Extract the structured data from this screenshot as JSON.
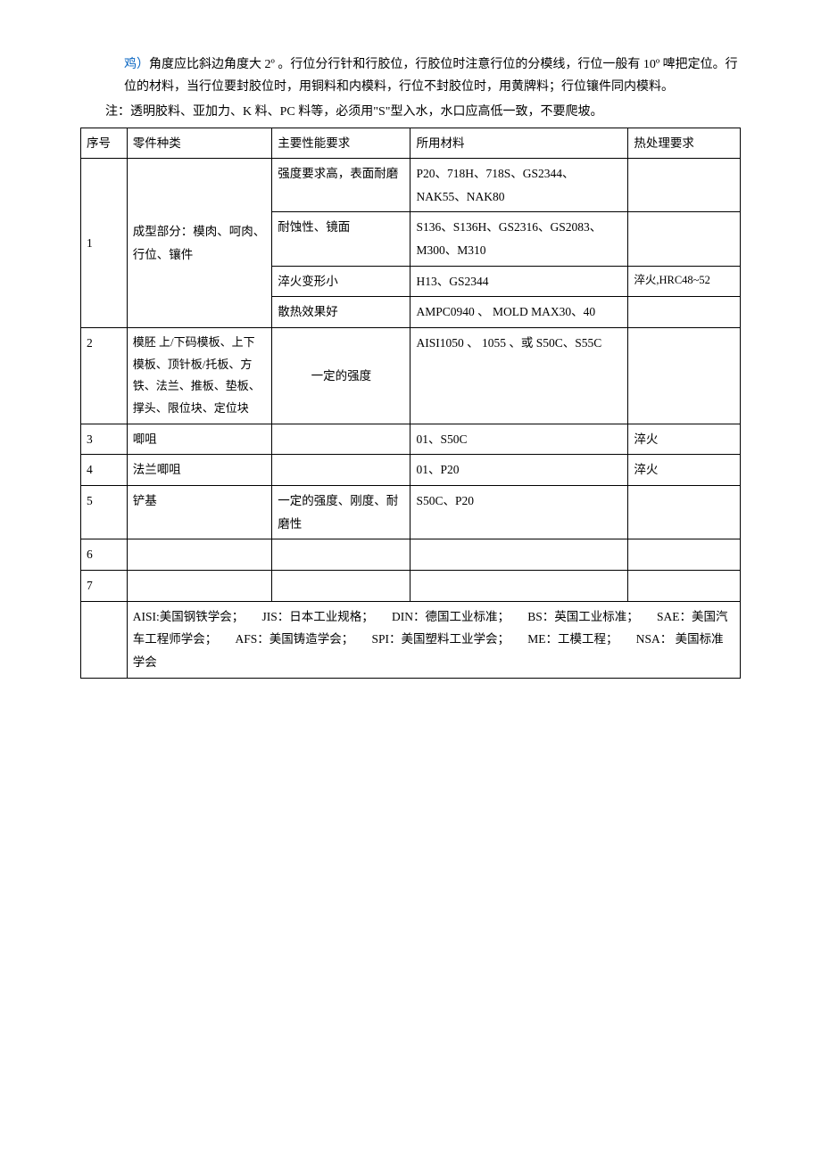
{
  "intro": {
    "link_text": "鸡）",
    "para1_rest": "角度应比斜边角度大 2º 。行位分行针和行胶位，行胶位时注意行位的分模线，行位一般有 10º 啤把定位。行位的材料，当行位要封胶位时，用铜料和内模料，行位不封胶位时，用黄牌料；行位镶件同内模料。",
    "note": "注：透明胶料、亚加力、K 料、PC 料等，必须用\"S\"型入水，水口应高低一致，不要爬坡。"
  },
  "header": {
    "seq": "序号",
    "type": "零件种类",
    "perf": "主要性能要求",
    "mat": "所用材料",
    "heat": "热处理要求"
  },
  "rows": {
    "r1": {
      "seq": "1",
      "type": "成型部分：模肉、呵肉、行位、镶件",
      "sub": [
        {
          "perf": "强度要求高，表面耐磨",
          "mat": "P20、718H、718S、GS2344、NAK55、NAK80",
          "heat": ""
        },
        {
          "perf": "耐蚀性、镜面",
          "mat": "S136、S136H、GS2316、GS2083、M300、M310",
          "heat": ""
        },
        {
          "perf": "淬火变形小",
          "mat": "H13、GS2344",
          "heat": "淬火,HRC48~52"
        },
        {
          "perf": "散热效果好",
          "mat": "AMPC0940  、  MOLD MAX30、40",
          "heat": ""
        }
      ]
    },
    "r2": {
      "seq": "2",
      "type": "模胚  上/下码模板、上下模板、顶针板/托板、方铁、法兰、推板、垫板、撑头、限位块、定位块",
      "perf": "一定的强度",
      "mat": "AISI1050  、  1055  、或 S50C、S55C",
      "heat": ""
    },
    "r3": {
      "seq": "3",
      "type": "唧咀",
      "perf": "",
      "mat": "01、S50C",
      "heat": "淬火"
    },
    "r4": {
      "seq": "4",
      "type": "法兰唧咀",
      "perf": "",
      "mat": "01、P20",
      "heat": "淬火"
    },
    "r5": {
      "seq": "5",
      "type": "铲基",
      "perf": "一定的强度、刚度、耐磨性",
      "mat": "S50C、P20",
      "heat": ""
    },
    "r6": {
      "seq": "6",
      "type": "",
      "perf": "",
      "mat": "",
      "heat": ""
    },
    "r7": {
      "seq": "7",
      "type": "",
      "perf": "",
      "mat": "",
      "heat": ""
    }
  },
  "footer": "AISI:美国钢铁学会；　　JIS：日本工业规格；　　DIN：德国工业标准；　　BS：英国工业标准；　　SAE：美国汽车工程师学会；　　AFS：美国铸造学会；　　SPI：美国塑料工业学会；　　ME：工模工程；　　NSA：  美国标准学会"
}
